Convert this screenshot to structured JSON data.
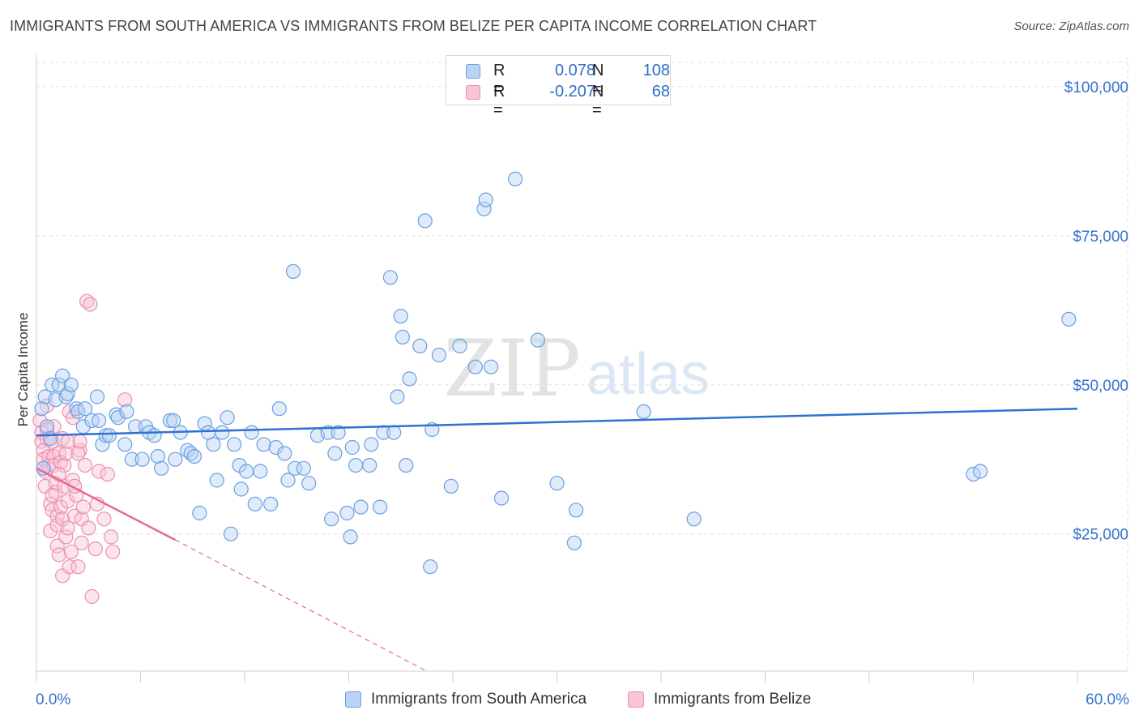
{
  "header": {
    "title": "IMMIGRANTS FROM SOUTH AMERICA VS IMMIGRANTS FROM BELIZE PER CAPITA INCOME CORRELATION CHART",
    "source": "Source: ZipAtlas.com"
  },
  "watermark": {
    "zip": "ZIP",
    "atlas": "atlas"
  },
  "legend_top": {
    "rows": [
      {
        "r_label": "R =",
        "r_value": "0.078",
        "n_label": "N =",
        "n_value": "108"
      },
      {
        "r_label": "R =",
        "r_value": "-0.207",
        "n_label": "N =",
        "n_value": "68"
      }
    ]
  },
  "legend_bottom": {
    "items": [
      {
        "label": "Immigrants from South America"
      },
      {
        "label": "Immigrants from Belize"
      }
    ]
  },
  "colors": {
    "blue_fill": "#b9d3f5",
    "blue_stroke": "#6a9fe0",
    "blue_line": "#2e72d2",
    "pink_fill": "#f9c4d6",
    "pink_stroke": "#ec8fb0",
    "pink_line": "#e56a96",
    "axis_text": "#3573cf",
    "grid": "#dedede"
  },
  "chart_data": {
    "type": "scatter",
    "title": "IMMIGRANTS FROM SOUTH AMERICA VS IMMIGRANTS FROM BELIZE PER CAPITA INCOME CORRELATION CHART",
    "xlabel": "",
    "ylabel": "Per Capita Income",
    "xlim": [
      0,
      60
    ],
    "ylim": [
      2000,
      105000
    ],
    "x_tick_labels": [
      "0.0%",
      "60.0%"
    ],
    "y_ticks": [
      25000,
      50000,
      75000,
      100000
    ],
    "y_tick_labels": [
      "$25,000",
      "$50,000",
      "$75,000",
      "$100,000"
    ],
    "grid": true,
    "legend_position": "bottom",
    "series": [
      {
        "name": "Immigrants from South America",
        "color": "#6a9fe0",
        "R": 0.078,
        "N": 108,
        "trend": {
          "x": [
            0,
            60
          ],
          "y": [
            41500,
            46000
          ]
        },
        "points": [
          [
            0.3,
            46000
          ],
          [
            0.4,
            36000
          ],
          [
            0.5,
            48000
          ],
          [
            0.6,
            43000
          ],
          [
            0.8,
            41000
          ],
          [
            0.9,
            50000
          ],
          [
            1.1,
            47500
          ],
          [
            1.3,
            50000
          ],
          [
            1.5,
            51500
          ],
          [
            1.7,
            48000
          ],
          [
            1.8,
            48500
          ],
          [
            2.0,
            50000
          ],
          [
            2.3,
            46000
          ],
          [
            2.4,
            45500
          ],
          [
            2.7,
            43000
          ],
          [
            2.8,
            46000
          ],
          [
            3.2,
            44000
          ],
          [
            3.5,
            48000
          ],
          [
            3.6,
            44000
          ],
          [
            3.8,
            40000
          ],
          [
            4.0,
            41500
          ],
          [
            4.2,
            41500
          ],
          [
            4.6,
            45000
          ],
          [
            4.7,
            44500
          ],
          [
            5.1,
            40000
          ],
          [
            5.2,
            45500
          ],
          [
            5.5,
            37500
          ],
          [
            5.7,
            43000
          ],
          [
            6.1,
            37500
          ],
          [
            6.3,
            43000
          ],
          [
            6.5,
            42000
          ],
          [
            6.8,
            41500
          ],
          [
            7.0,
            38000
          ],
          [
            7.2,
            36000
          ],
          [
            7.7,
            44000
          ],
          [
            7.9,
            44000
          ],
          [
            8.0,
            37500
          ],
          [
            8.3,
            42000
          ],
          [
            8.7,
            39000
          ],
          [
            8.9,
            38500
          ],
          [
            9.1,
            38000
          ],
          [
            9.4,
            28500
          ],
          [
            9.7,
            43500
          ],
          [
            9.9,
            42000
          ],
          [
            10.2,
            40000
          ],
          [
            10.4,
            34000
          ],
          [
            10.7,
            42000
          ],
          [
            11.0,
            44500
          ],
          [
            11.2,
            25000
          ],
          [
            11.4,
            40000
          ],
          [
            11.7,
            36500
          ],
          [
            11.8,
            32500
          ],
          [
            12.1,
            35500
          ],
          [
            12.4,
            42000
          ],
          [
            12.6,
            30000
          ],
          [
            12.9,
            35500
          ],
          [
            13.1,
            40000
          ],
          [
            13.5,
            30000
          ],
          [
            13.8,
            39500
          ],
          [
            14.0,
            46000
          ],
          [
            14.3,
            38500
          ],
          [
            14.5,
            34000
          ],
          [
            14.8,
            69000
          ],
          [
            14.9,
            36000
          ],
          [
            15.4,
            36000
          ],
          [
            15.7,
            33500
          ],
          [
            16.2,
            41500
          ],
          [
            16.8,
            42000
          ],
          [
            17.0,
            27500
          ],
          [
            17.2,
            38500
          ],
          [
            17.4,
            42000
          ],
          [
            17.9,
            28500
          ],
          [
            18.1,
            24500
          ],
          [
            18.2,
            39500
          ],
          [
            18.4,
            36500
          ],
          [
            18.7,
            29500
          ],
          [
            19.2,
            36500
          ],
          [
            19.3,
            40000
          ],
          [
            19.8,
            29500
          ],
          [
            20.0,
            42000
          ],
          [
            20.4,
            68000
          ],
          [
            20.6,
            42000
          ],
          [
            20.8,
            48000
          ],
          [
            21.0,
            61500
          ],
          [
            21.1,
            58000
          ],
          [
            21.3,
            36500
          ],
          [
            21.5,
            51000
          ],
          [
            22.1,
            56500
          ],
          [
            22.4,
            77500
          ],
          [
            22.7,
            19500
          ],
          [
            22.8,
            42500
          ],
          [
            23.2,
            55000
          ],
          [
            23.9,
            33000
          ],
          [
            24.4,
            56500
          ],
          [
            25.3,
            53000
          ],
          [
            25.8,
            79500
          ],
          [
            25.9,
            81000
          ],
          [
            26.2,
            53000
          ],
          [
            26.8,
            31000
          ],
          [
            27.6,
            84500
          ],
          [
            28.9,
            57500
          ],
          [
            30.0,
            33500
          ],
          [
            31.0,
            23500
          ],
          [
            31.1,
            29000
          ],
          [
            35.0,
            45500
          ],
          [
            37.9,
            27500
          ],
          [
            54.0,
            35000
          ],
          [
            54.4,
            35500
          ],
          [
            59.5,
            61000
          ]
        ]
      },
      {
        "name": "Immigrants from Belize",
        "color": "#ec8fb0",
        "R": -0.207,
        "N": 68,
        "trend": {
          "x": [
            0,
            8
          ],
          "y": [
            36000,
            24000
          ]
        },
        "trend_extension": {
          "x": [
            8,
            22.5
          ],
          "y": [
            24000,
            2000
          ]
        },
        "points": [
          [
            0.2,
            44000
          ],
          [
            0.3,
            42000
          ],
          [
            0.3,
            40500
          ],
          [
            0.4,
            39000
          ],
          [
            0.4,
            37500
          ],
          [
            0.5,
            35500
          ],
          [
            0.5,
            33000
          ],
          [
            0.6,
            46500
          ],
          [
            0.6,
            41000
          ],
          [
            0.7,
            38000
          ],
          [
            0.7,
            36500
          ],
          [
            0.8,
            30000
          ],
          [
            0.8,
            25500
          ],
          [
            0.9,
            40500
          ],
          [
            0.9,
            29000
          ],
          [
            1.0,
            38000
          ],
          [
            1.0,
            36500
          ],
          [
            1.1,
            33500
          ],
          [
            1.1,
            32000
          ],
          [
            1.2,
            28000
          ],
          [
            1.2,
            26500
          ],
          [
            1.2,
            23000
          ],
          [
            1.3,
            38500
          ],
          [
            1.3,
            21500
          ],
          [
            1.4,
            37000
          ],
          [
            1.4,
            29500
          ],
          [
            1.5,
            41000
          ],
          [
            1.5,
            27500
          ],
          [
            1.5,
            18000
          ],
          [
            1.6,
            36500
          ],
          [
            1.6,
            33000
          ],
          [
            1.7,
            38500
          ],
          [
            1.7,
            24500
          ],
          [
            1.8,
            30500
          ],
          [
            1.8,
            26000
          ],
          [
            1.9,
            45500
          ],
          [
            1.9,
            19500
          ],
          [
            2.0,
            22000
          ],
          [
            2.1,
            44500
          ],
          [
            2.1,
            34000
          ],
          [
            2.2,
            28000
          ],
          [
            2.3,
            31500
          ],
          [
            2.4,
            19500
          ],
          [
            2.5,
            39000
          ],
          [
            2.5,
            40500
          ],
          [
            2.6,
            27500
          ],
          [
            2.6,
            23500
          ],
          [
            2.7,
            29500
          ],
          [
            2.8,
            36500
          ],
          [
            3.0,
            26000
          ],
          [
            3.2,
            14500
          ],
          [
            3.4,
            22500
          ],
          [
            3.5,
            30000
          ],
          [
            3.6,
            35500
          ],
          [
            3.9,
            27500
          ],
          [
            4.1,
            35000
          ],
          [
            4.3,
            24500
          ],
          [
            4.4,
            22000
          ],
          [
            5.1,
            47500
          ],
          [
            1.0,
            43000
          ],
          [
            1.3,
            35000
          ],
          [
            2.4,
            38500
          ],
          [
            2.9,
            64000
          ],
          [
            3.1,
            63500
          ],
          [
            0.6,
            42500
          ],
          [
            1.8,
            40500
          ],
          [
            0.9,
            31500
          ],
          [
            2.2,
            33000
          ]
        ]
      }
    ]
  }
}
